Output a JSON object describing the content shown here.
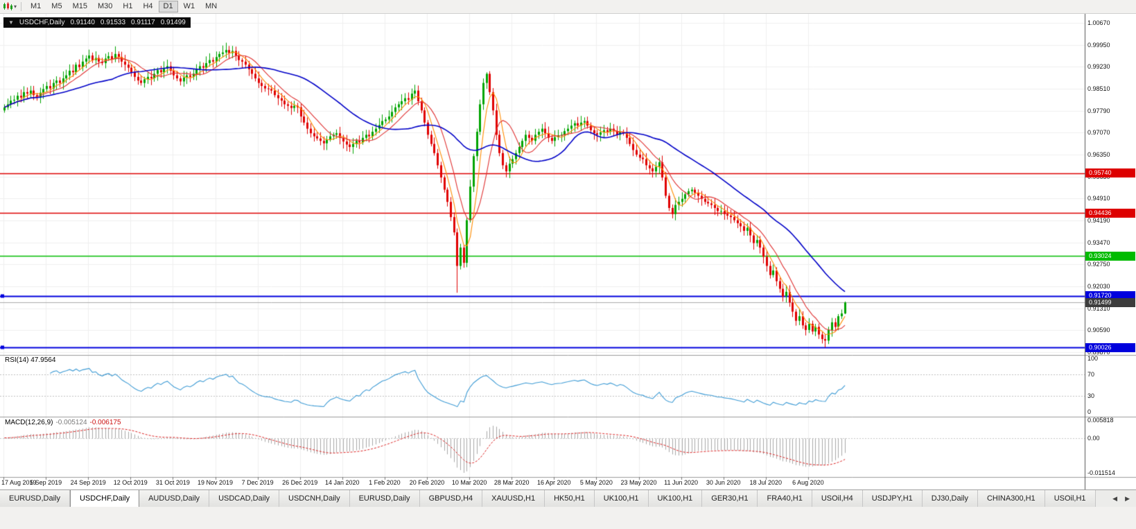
{
  "toolbar": {
    "chart_type_icon": "candlestick-chart",
    "dropdown_icon": "▾",
    "timeframes": [
      "M1",
      "M5",
      "M15",
      "M30",
      "H1",
      "H4",
      "D1",
      "W1",
      "MN"
    ],
    "active_timeframe": "D1"
  },
  "symbol_header": {
    "collapse_icon": "▼",
    "symbol": "USDCHF,Daily",
    "open": "0.91140",
    "high": "0.91533",
    "low": "0.91117",
    "close": "0.91499"
  },
  "price_axis": {
    "labels": [
      {
        "text": "1.00670",
        "value": 1.0067
      },
      {
        "text": "0.99950",
        "value": 0.9995
      },
      {
        "text": "0.99230",
        "value": 0.9923
      },
      {
        "text": "0.98510",
        "value": 0.9851
      },
      {
        "text": "0.97790",
        "value": 0.9779
      },
      {
        "text": "0.97070",
        "value": 0.9707
      },
      {
        "text": "0.96350",
        "value": 0.9635
      },
      {
        "text": "0.95630",
        "value": 0.9563
      },
      {
        "text": "0.94910",
        "value": 0.9491
      },
      {
        "text": "0.94190",
        "value": 0.9419
      },
      {
        "text": "0.93470",
        "value": 0.9347
      },
      {
        "text": "0.92750",
        "value": 0.9275
      },
      {
        "text": "0.92030",
        "value": 0.9203
      },
      {
        "text": "0.91310",
        "value": 0.9131
      },
      {
        "text": "0.90590",
        "value": 0.9059
      },
      {
        "text": "0.89870",
        "value": 0.8987
      }
    ]
  },
  "levels": [
    {
      "label": "0.95740",
      "value": 0.9574,
      "color": "#dd0000",
      "width": 1.5
    },
    {
      "label": "0.94436",
      "value": 0.94436,
      "color": "#dd0000",
      "width": 1.5
    },
    {
      "label": "0.93024",
      "value": 0.93024,
      "color": "#00bb00",
      "width": 1.5
    },
    {
      "label": "0.91720",
      "value": 0.9172,
      "color": "#0000dd",
      "width": 2,
      "anchor": true
    },
    {
      "label": "0.90026",
      "value": 0.90026,
      "color": "#0000dd",
      "width": 2,
      "anchor": true
    }
  ],
  "current_price": {
    "label": "0.91499",
    "value": 0.91499,
    "badge_color": "#3c3c3c",
    "line_color": "#aaaaaa"
  },
  "rsi_panel": {
    "title": "RSI(14)",
    "value": "47.9564",
    "line_color": "#3d9bd5",
    "guide_levels": [
      70,
      30
    ],
    "axis_labels": [
      {
        "text": "100",
        "value": 100
      },
      {
        "text": "70",
        "value": 70
      },
      {
        "text": "30",
        "value": 30
      },
      {
        "text": "0",
        "value": 0
      }
    ]
  },
  "macd_panel": {
    "title": "MACD(12,26,9)",
    "main_value": "-0.005124",
    "signal_value": "-0.006175",
    "histogram_color": "#a8a8a8",
    "signal_color": "#dd2222",
    "axis_labels": [
      {
        "text": "0.005818",
        "value": 0.005818
      },
      {
        "text": "0.00",
        "value": 0
      },
      {
        "text": "-0.011514",
        "value": -0.011514
      }
    ]
  },
  "tabs": {
    "active_index": 1,
    "scroll_left_icon": "◀",
    "scroll_right_icon": "▶",
    "items": [
      {
        "label": "EURUSD,Daily"
      },
      {
        "label": "USDCHF,Daily"
      },
      {
        "label": "AUDUSD,Daily"
      },
      {
        "label": "USDCAD,Daily"
      },
      {
        "label": "USDCNH,Daily"
      },
      {
        "label": "EURUSD,Daily"
      },
      {
        "label": "GBPUSD,H4"
      },
      {
        "label": "XAUUSD,H1"
      },
      {
        "label": "HK50,H1"
      },
      {
        "label": "UK100,H1"
      },
      {
        "label": "UK100,H1"
      },
      {
        "label": "GER30,H1"
      },
      {
        "label": "FRA40,H1"
      },
      {
        "label": "USOil,H4"
      },
      {
        "label": "USDJPY,H1"
      },
      {
        "label": "DJ30,Daily"
      },
      {
        "label": "CHINA300,H1"
      },
      {
        "label": "USOil,H1"
      }
    ]
  },
  "chart_data": {
    "type": "candlestick",
    "symbol": "USDCHF",
    "timeframe": "Daily",
    "title": "USDCHF,Daily",
    "y_axis_visible_range": [
      0.8987,
      1.0067
    ],
    "last_candle": {
      "open": 0.9114,
      "high": 0.91533,
      "low": 0.91117,
      "close": 0.91499
    },
    "x_labels": [
      "17 Aug 2019",
      "5 Sep 2019",
      "24 Sep 2019",
      "12 Oct 2019",
      "31 Oct 2019",
      "19 Nov 2019",
      "7 Dec 2019",
      "26 Dec 2019",
      "14 Jan 2020",
      "1 Feb 2020",
      "20 Feb 2020",
      "10 Mar 2020",
      "28 Mar 2020",
      "16 Apr 2020",
      "5 May 2020",
      "23 May 2020",
      "11 Jun 2020",
      "30 Jun 2020",
      "18 Jul 2020",
      "6 Aug 2020"
    ],
    "bars_per_label": 13,
    "first_open": 0.978,
    "closes": [
      0.979,
      0.98,
      0.9812,
      0.9815,
      0.9828,
      0.9822,
      0.984,
      0.9835,
      0.9845,
      0.983,
      0.9825,
      0.9838,
      0.985,
      0.986,
      0.9852,
      0.987,
      0.9878,
      0.987,
      0.9885,
      0.9895,
      0.991,
      0.9905,
      0.993,
      0.9922,
      0.994,
      0.995,
      0.996,
      0.9945,
      0.9952,
      0.994,
      0.9935,
      0.995,
      0.9958,
      0.9948,
      0.9965,
      0.9955,
      0.994,
      0.993,
      0.992,
      0.9905,
      0.989,
      0.9878,
      0.987,
      0.9882,
      0.989,
      0.9885,
      0.99,
      0.9912,
      0.9905,
      0.9918,
      0.9925,
      0.991,
      0.9895,
      0.9885,
      0.9875,
      0.9888,
      0.9895,
      0.989,
      0.99,
      0.9915,
      0.9925,
      0.992,
      0.9935,
      0.9945,
      0.994,
      0.9955,
      0.9965,
      0.997,
      0.9978,
      0.9968,
      0.9975,
      0.996,
      0.9945,
      0.994,
      0.993,
      0.9915,
      0.99,
      0.9885,
      0.987,
      0.986,
      0.9852,
      0.985,
      0.9845,
      0.983,
      0.982,
      0.9812,
      0.98,
      0.9795,
      0.9788,
      0.9795,
      0.979,
      0.976,
      0.974,
      0.972,
      0.9705,
      0.9695,
      0.9688,
      0.968,
      0.9672,
      0.9685,
      0.9695,
      0.97,
      0.9705,
      0.969,
      0.9678,
      0.9668,
      0.966,
      0.967,
      0.968,
      0.9675,
      0.969,
      0.97,
      0.9695,
      0.971,
      0.972,
      0.9732,
      0.9745,
      0.975,
      0.976,
      0.9775,
      0.979,
      0.98,
      0.981,
      0.982,
      0.9815,
      0.9835,
      0.9845,
      0.981,
      0.978,
      0.974,
      0.97,
      0.967,
      0.964,
      0.96,
      0.956,
      0.952,
      0.948,
      0.943,
      0.938,
      0.927,
      0.933,
      0.928,
      0.942,
      0.953,
      0.963,
      0.971,
      0.98,
      0.987,
      0.99,
      0.984,
      0.978,
      0.97,
      0.964,
      0.96,
      0.958,
      0.9605,
      0.962,
      0.964,
      0.966,
      0.968,
      0.97,
      0.969,
      0.968,
      0.97,
      0.971,
      0.972,
      0.9705,
      0.969,
      0.968,
      0.9692,
      0.9698,
      0.97,
      0.9712,
      0.972,
      0.973,
      0.9738,
      0.973,
      0.974,
      0.9745,
      0.973,
      0.9715,
      0.9705,
      0.97,
      0.9708,
      0.9715,
      0.971,
      0.972,
      0.9712,
      0.97,
      0.971,
      0.9705,
      0.969,
      0.967,
      0.965,
      0.9635,
      0.9625,
      0.962,
      0.96,
      0.959,
      0.958,
      0.9595,
      0.961,
      0.956,
      0.95,
      0.946,
      0.944,
      0.947,
      0.948,
      0.949,
      0.9505,
      0.9515,
      0.952,
      0.951,
      0.95,
      0.949,
      0.948,
      0.9475,
      0.947,
      0.946,
      0.945,
      0.945,
      0.944,
      0.9435,
      0.943,
      0.942,
      0.941,
      0.94,
      0.9385,
      0.9395,
      0.937,
      0.9345,
      0.9355,
      0.933,
      0.93,
      0.927,
      0.924,
      0.9255,
      0.922,
      0.9195,
      0.917,
      0.9185,
      0.915,
      0.912,
      0.909,
      0.9105,
      0.9075,
      0.906,
      0.908,
      0.9055,
      0.907,
      0.9045,
      0.903,
      0.9025,
      0.906,
      0.9085,
      0.907,
      0.9105,
      0.9114,
      0.91499
    ],
    "wick_low_overrides": {
      "139": 0.9182,
      "252": 0.90026
    },
    "wick_high_overrides": {
      "34": 0.999,
      "68": 1.0002,
      "148": 0.9905
    },
    "up_color": "#00a400",
    "down_color": "#e00000",
    "moving_averages": [
      {
        "period": 5,
        "color": "#ff8c00"
      },
      {
        "period": 10,
        "color": "#e03030"
      },
      {
        "period": 34,
        "color": "#0000c8"
      }
    ],
    "indicators": [
      {
        "name": "RSI",
        "period": 14,
        "current": 47.9564
      },
      {
        "name": "MACD",
        "fast": 12,
        "slow": 26,
        "signal": 9,
        "current_main": -0.005124,
        "current_signal": -0.006175
      }
    ]
  }
}
